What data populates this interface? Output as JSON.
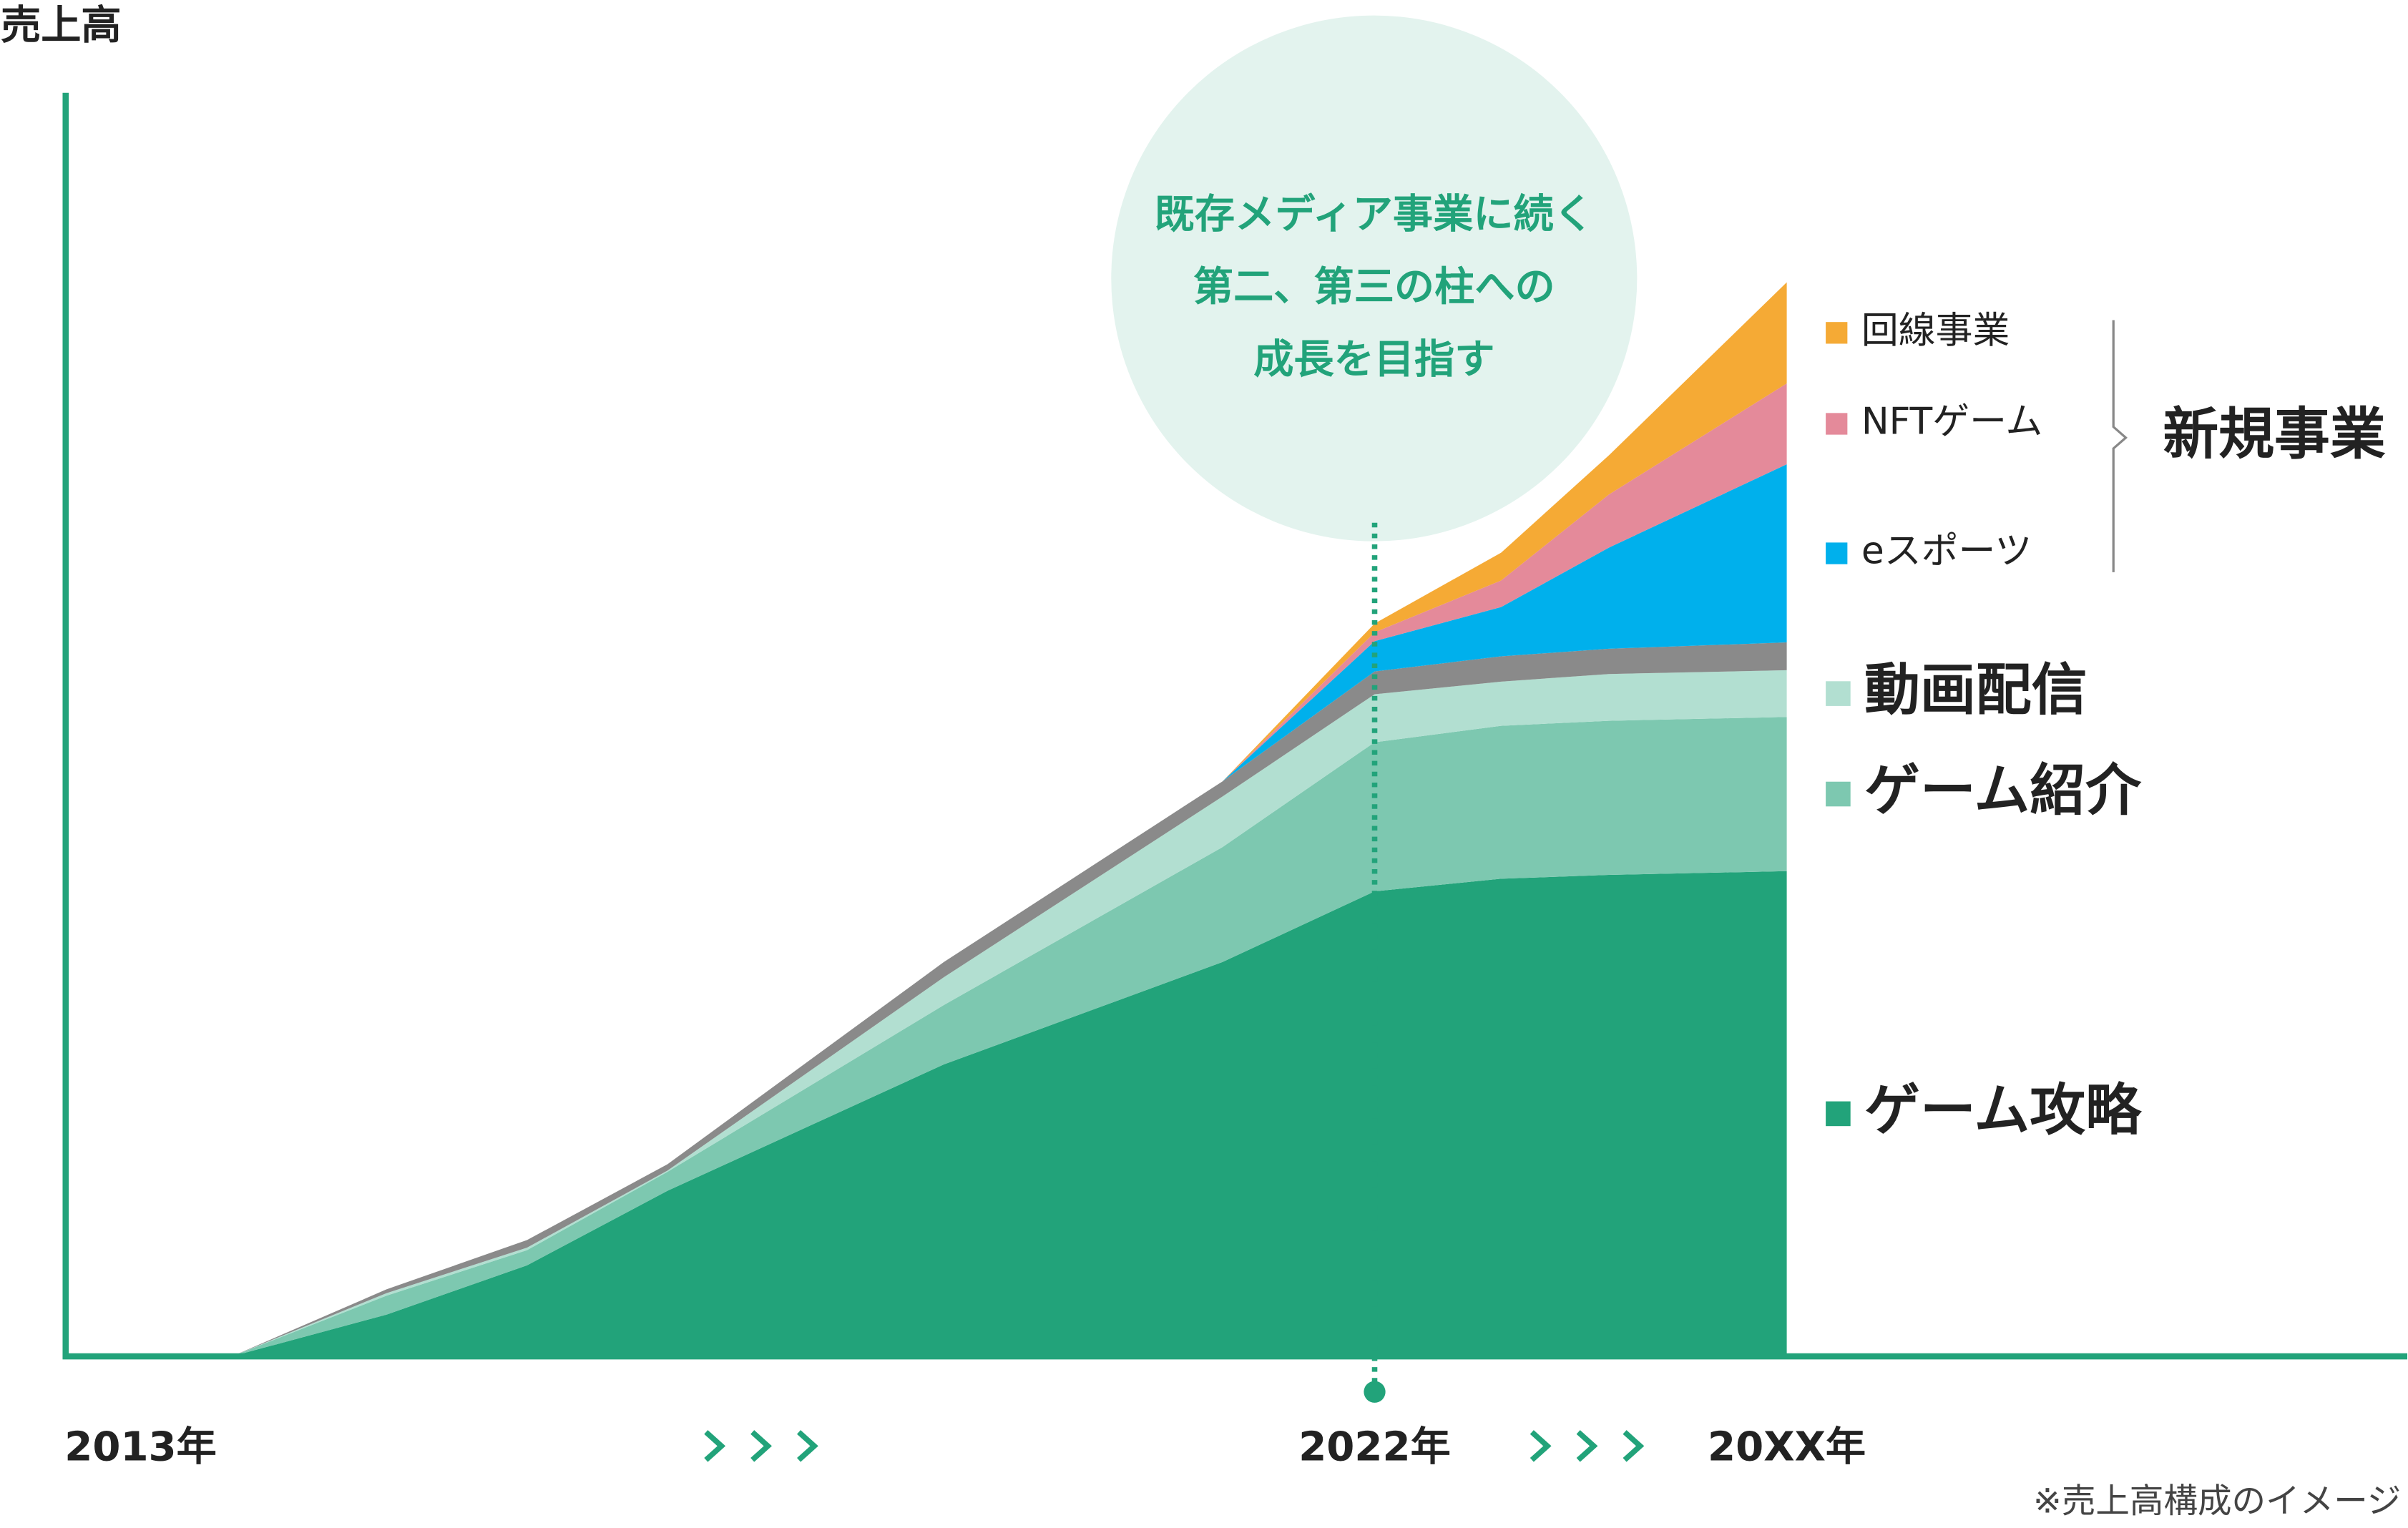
{
  "chart_data": {
    "type": "stacked-area",
    "ylabel": "売上高",
    "annotation": [
      "既存メディア事業に続く",
      "第二、第三の柱への",
      "成長を目指す"
    ],
    "group_label": "新規事業",
    "note": "※売上高構成のイメージ",
    "xlim": [
      0,
      100
    ],
    "ylim": [
      0,
      100
    ],
    "xticks": [
      {
        "value": 3.2,
        "label": "2013年"
      },
      {
        "value": 55.9,
        "label": "2022年"
      },
      {
        "value": 73.5,
        "label": "20XX年"
      }
    ],
    "x": [
      7.1,
      13.7,
      19.7,
      25.7,
      37.5,
      49.4,
      55.9,
      61.3,
      65.9,
      73.5
    ],
    "series": [
      {
        "name": "ゲーム攻略",
        "color": "#22a37a",
        "values": [
          0,
          3.3,
          7.2,
          13.1,
          23.1,
          31.2,
          36.8,
          37.8,
          38.1,
          38.4
        ]
      },
      {
        "name": "ゲーム紹介",
        "color": "#7dc8b0",
        "values": [
          0,
          1.5,
          1.2,
          1.5,
          4.7,
          9.1,
          11.8,
          12.1,
          12.2,
          12.2
        ]
      },
      {
        "name": "動画配信",
        "color": "#b2dfd1",
        "values": [
          0,
          0.2,
          0.2,
          0.1,
          2.2,
          4.0,
          3.8,
          3.5,
          3.7,
          3.7
        ]
      },
      {
        "name": null,
        "color": "#8a8a8a",
        "values": [
          0,
          0.3,
          0.6,
          0.5,
          1.2,
          1.2,
          1.8,
          2.0,
          2.0,
          2.2
        ]
      },
      {
        "name": "eスポーツ",
        "color": "#00b0ec",
        "grouped": true,
        "values": [
          0,
          0,
          0,
          0,
          0,
          0,
          2.4,
          3.9,
          8.0,
          14.1
        ]
      },
      {
        "name": "NFTゲーム",
        "color": "#e48a9a",
        "grouped": true,
        "values": [
          0,
          0,
          0,
          0,
          0,
          0,
          0.7,
          2.1,
          4.2,
          6.4
        ]
      },
      {
        "name": "回線事業",
        "color": "#f5aa35",
        "grouped": true,
        "values": [
          0,
          0,
          0,
          0,
          0,
          0,
          0.7,
          2.2,
          3.1,
          8.0
        ]
      }
    ]
  }
}
